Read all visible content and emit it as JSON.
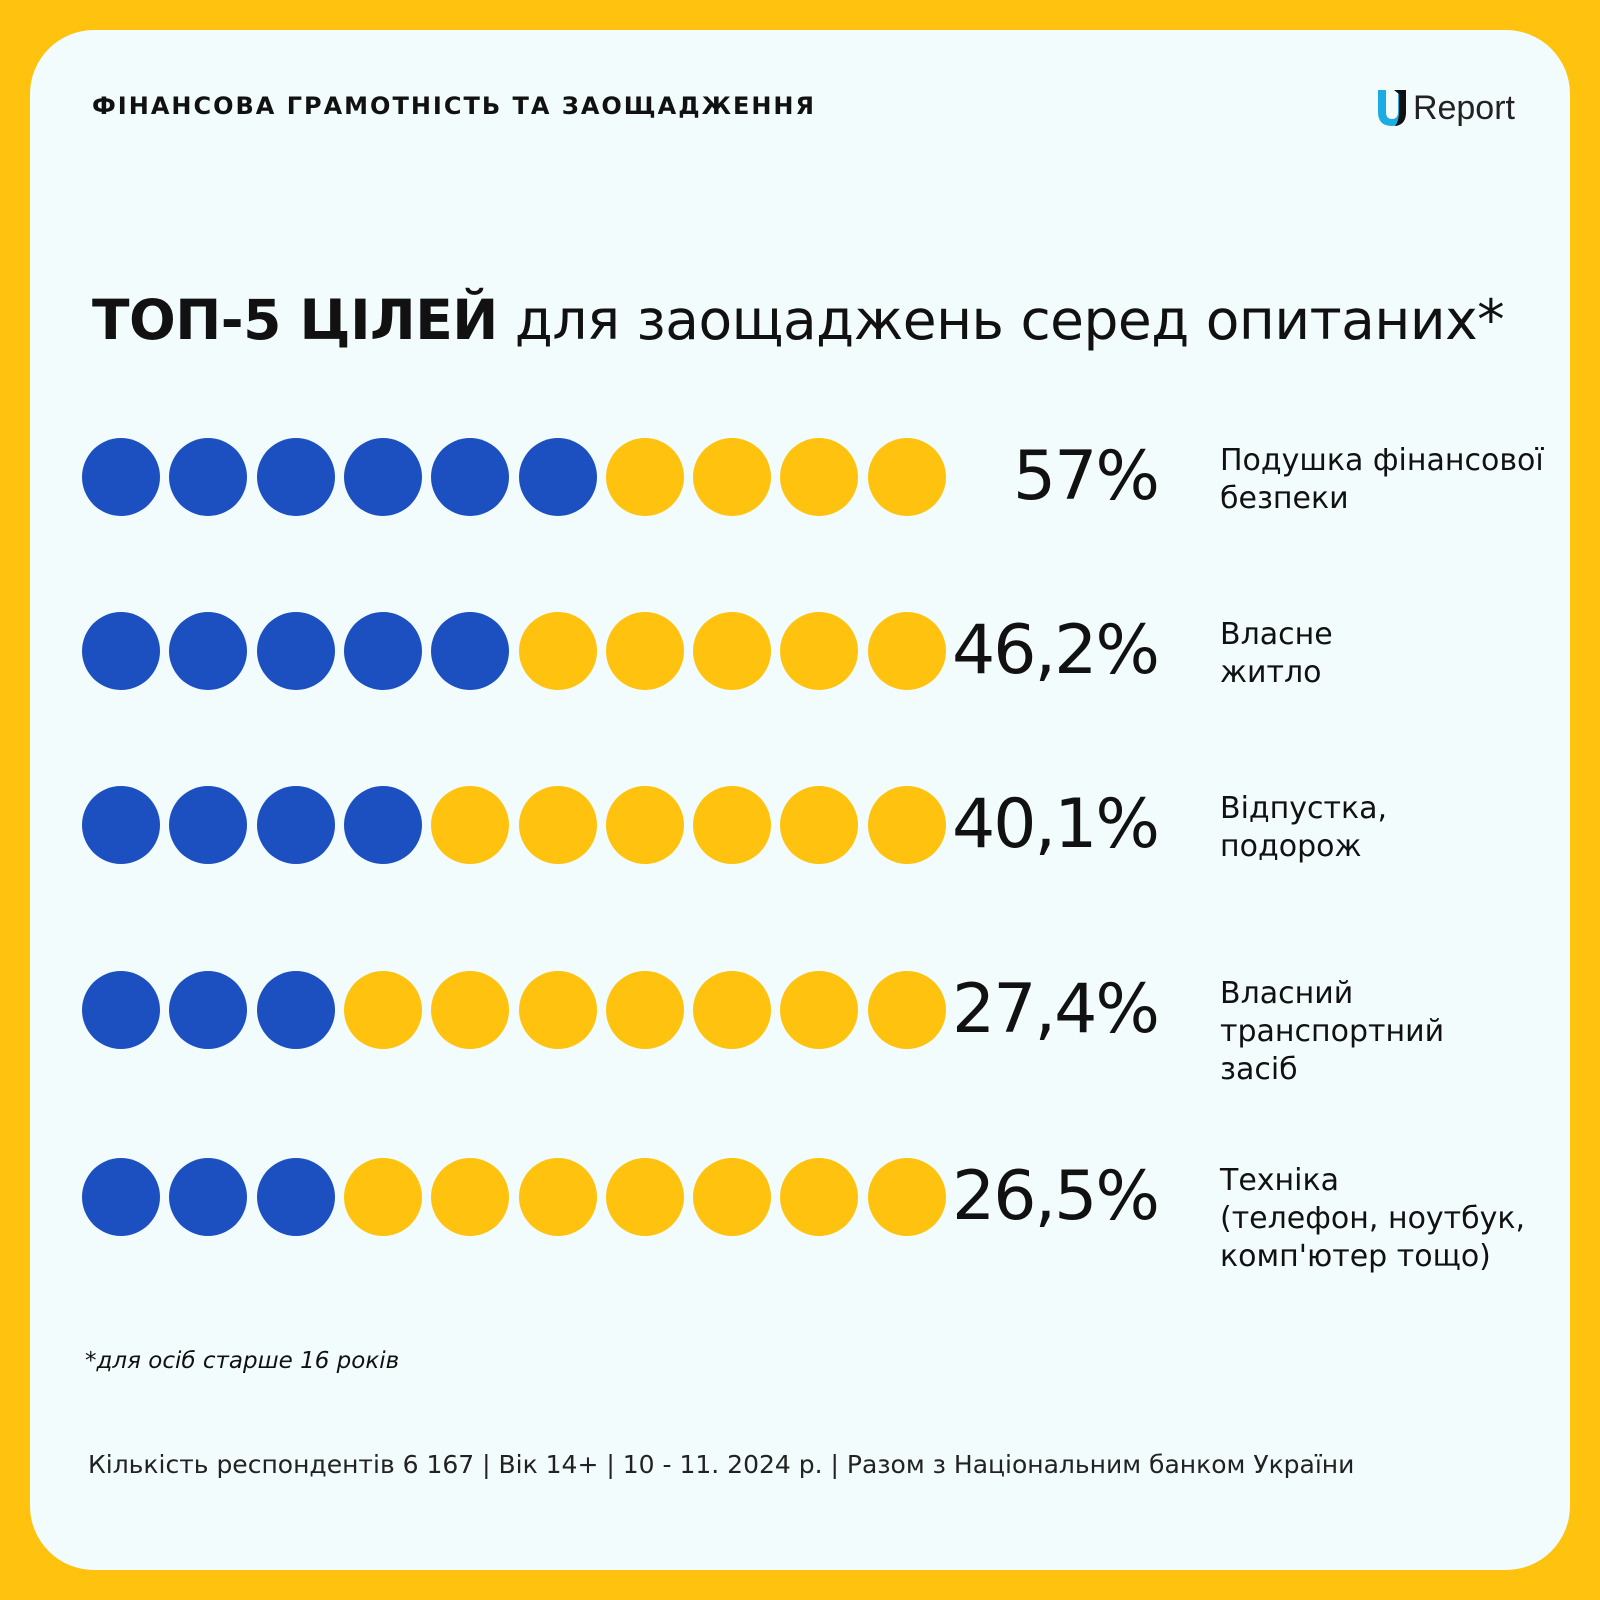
{
  "header": {
    "kicker": "ФІНАНСОВА ГРАМОТНІСТЬ ТА ЗАОЩАДЖЕННЯ",
    "logo_text": "Report",
    "logo_icon": "ureport-u-logo"
  },
  "title": {
    "bold": "ТОП-5 ЦІЛЕЙ",
    "rest": " для заощаджень серед опитаних*"
  },
  "colors": {
    "filled": "#1C4FC0",
    "empty": "#FFC20E",
    "frame": "#FFC20E",
    "card": "#F2FCFC"
  },
  "chart_data": {
    "type": "dot-pictogram",
    "dots_per_row": 10,
    "rows": [
      {
        "label_lines": [
          "Подушка фінансової",
          "безпеки"
        ],
        "value": 57,
        "display": "57%",
        "filled_dots": 6
      },
      {
        "label_lines": [
          "Власне",
          "житло"
        ],
        "value": 46.2,
        "display": "46,2%",
        "filled_dots": 5
      },
      {
        "label_lines": [
          "Відпустка,",
          "подорож"
        ],
        "value": 40.1,
        "display": "40,1%",
        "filled_dots": 4
      },
      {
        "label_lines": [
          "Власний",
          "транспортний",
          "засіб"
        ],
        "value": 27.4,
        "display": "27,4%",
        "filled_dots": 3
      },
      {
        "label_lines": [
          "Техніка",
          "(телефон, ноутбук,",
          "комп'ютер тощо)"
        ],
        "value": 26.5,
        "display": "26,5%",
        "filled_dots": 3
      }
    ]
  },
  "footnote": "*для осіб старше 16 років",
  "meta": "Кількість респондентів 6 167 | Вік 14+ | 10 - 11. 2024 р. | Разом з Національним банком України"
}
